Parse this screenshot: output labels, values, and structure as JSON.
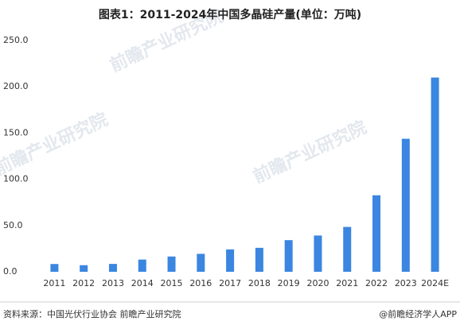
{
  "chart_data": {
    "type": "bar",
    "title": "图表1：2011-2024年中国多晶硅产量(单位：万吨)",
    "categories": [
      "2011",
      "2012",
      "2013",
      "2014",
      "2015",
      "2016",
      "2017",
      "2018",
      "2019",
      "2020",
      "2021",
      "2022",
      "2023",
      "2024E"
    ],
    "values": [
      8.4,
      7.1,
      8.5,
      13.2,
      16.5,
      19.4,
      24.2,
      25.9,
      34.2,
      39.2,
      48.5,
      82.7,
      143.8,
      210
    ],
    "color": "#3a86e0",
    "ylim": [
      0,
      250
    ],
    "yticks": [
      {
        "value": 0,
        "label": "0.0"
      },
      {
        "value": 50,
        "label": "50.0"
      },
      {
        "value": 100,
        "label": "100.0"
      },
      {
        "value": 150,
        "label": "150.0"
      },
      {
        "value": 200,
        "label": "200.0"
      },
      {
        "value": 250,
        "label": "250.0"
      }
    ],
    "grid": false,
    "source": "资料来源：中国光伏行业协会 前瞻产业研究院",
    "credit": "@前瞻经济学人APP",
    "watermark": "前瞻产业研究院"
  }
}
